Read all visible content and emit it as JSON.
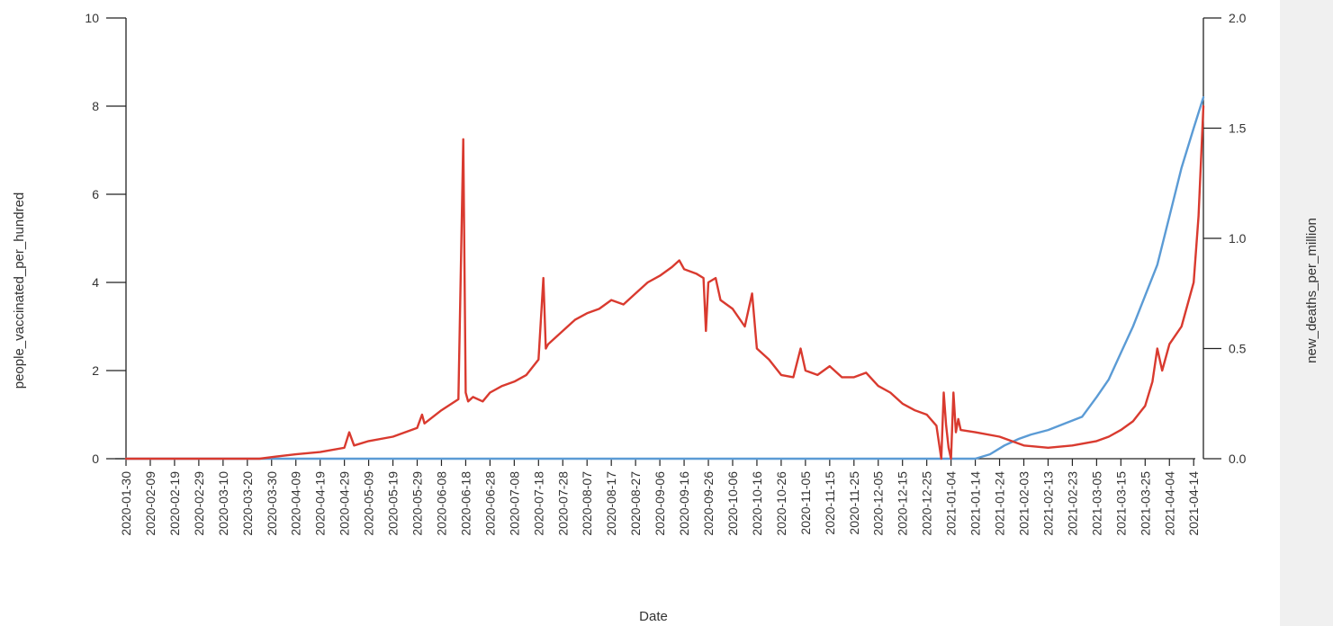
{
  "chart_data": {
    "type": "line",
    "xlabel": "Date",
    "ylabel_left": "people_vaccinated_per_hundred",
    "ylabel_right": "new_deaths_per_million",
    "ylim_left": [
      0,
      10
    ],
    "ylim_right": [
      0,
      2.0
    ],
    "yticks_left": [
      "0",
      "2",
      "4",
      "6",
      "8",
      "10"
    ],
    "yticks_right": [
      "0.0",
      "0.5",
      "1.0",
      "1.5",
      "2.0"
    ],
    "x_range": [
      "2020-01-30",
      "2021-04-18"
    ],
    "xticks": [
      "2020-01-30",
      "2020-02-09",
      "2020-02-19",
      "2020-02-29",
      "2020-03-10",
      "2020-03-20",
      "2020-03-30",
      "2020-04-09",
      "2020-04-19",
      "2020-04-29",
      "2020-05-09",
      "2020-05-19",
      "2020-05-29",
      "2020-06-08",
      "2020-06-18",
      "2020-06-28",
      "2020-07-08",
      "2020-07-18",
      "2020-07-28",
      "2020-08-07",
      "2020-08-17",
      "2020-08-27",
      "2020-09-06",
      "2020-09-16",
      "2020-09-26",
      "2020-10-06",
      "2020-10-16",
      "2020-10-26",
      "2020-11-05",
      "2020-11-15",
      "2020-11-25",
      "2020-12-05",
      "2020-12-15",
      "2020-12-25",
      "2021-01-04",
      "2021-01-14",
      "2021-01-24",
      "2021-02-03",
      "2021-02-13",
      "2021-02-23",
      "2021-03-05",
      "2021-03-15",
      "2021-03-25",
      "2021-04-04",
      "2021-04-14"
    ],
    "grid": false,
    "series": [
      {
        "name": "people_vaccinated_per_hundred",
        "axis": "left",
        "color": "#5b9bd5",
        "x": [
          "2020-01-30",
          "2021-01-14",
          "2021-01-20",
          "2021-01-26",
          "2021-02-01",
          "2021-02-06",
          "2021-02-13",
          "2021-02-20",
          "2021-02-27",
          "2021-03-05",
          "2021-03-10",
          "2021-03-15",
          "2021-03-20",
          "2021-03-25",
          "2021-03-30",
          "2021-04-04",
          "2021-04-09",
          "2021-04-14",
          "2021-04-18"
        ],
        "values": [
          0,
          0,
          0.1,
          0.3,
          0.45,
          0.55,
          0.65,
          0.8,
          0.95,
          1.4,
          1.8,
          2.4,
          3.0,
          3.7,
          4.4,
          5.5,
          6.6,
          7.5,
          8.2
        ]
      },
      {
        "name": "new_deaths_per_million",
        "axis": "right",
        "color": "#d93a2f",
        "x": [
          "2020-01-30",
          "2020-03-25",
          "2020-04-01",
          "2020-04-09",
          "2020-04-19",
          "2020-04-29",
          "2020-05-01",
          "2020-05-03",
          "2020-05-09",
          "2020-05-19",
          "2020-05-29",
          "2020-05-31",
          "2020-06-01",
          "2020-06-08",
          "2020-06-15",
          "2020-06-17",
          "2020-06-18",
          "2020-06-19",
          "2020-06-21",
          "2020-06-25",
          "2020-06-28",
          "2020-07-03",
          "2020-07-08",
          "2020-07-13",
          "2020-07-18",
          "2020-07-20",
          "2020-07-21",
          "2020-07-22",
          "2020-07-28",
          "2020-08-02",
          "2020-08-07",
          "2020-08-12",
          "2020-08-17",
          "2020-08-22",
          "2020-08-27",
          "2020-09-01",
          "2020-09-06",
          "2020-09-11",
          "2020-09-14",
          "2020-09-16",
          "2020-09-21",
          "2020-09-24",
          "2020-09-25",
          "2020-09-26",
          "2020-09-29",
          "2020-10-01",
          "2020-10-06",
          "2020-10-11",
          "2020-10-14",
          "2020-10-16",
          "2020-10-21",
          "2020-10-26",
          "2020-10-31",
          "2020-11-03",
          "2020-11-05",
          "2020-11-10",
          "2020-11-15",
          "2020-11-20",
          "2020-11-25",
          "2020-11-30",
          "2020-12-05",
          "2020-12-10",
          "2020-12-15",
          "2020-12-20",
          "2020-12-25",
          "2020-12-29",
          "2020-12-31",
          "2021-01-01",
          "2021-01-02",
          "2021-01-03",
          "2021-01-04",
          "2021-01-05",
          "2021-01-06",
          "2021-01-07",
          "2021-01-08",
          "2021-01-14",
          "2021-01-24",
          "2021-02-03",
          "2021-02-13",
          "2021-02-23",
          "2021-03-05",
          "2021-03-10",
          "2021-03-15",
          "2021-03-20",
          "2021-03-25",
          "2021-03-28",
          "2021-03-30",
          "2021-04-01",
          "2021-04-04",
          "2021-04-09",
          "2021-04-14",
          "2021-04-16",
          "2021-04-18"
        ],
        "values": [
          0,
          0,
          0.01,
          0.02,
          0.03,
          0.05,
          0.12,
          0.06,
          0.08,
          0.1,
          0.14,
          0.2,
          0.16,
          0.22,
          0.27,
          1.45,
          0.3,
          0.26,
          0.28,
          0.26,
          0.3,
          0.33,
          0.35,
          0.38,
          0.45,
          0.82,
          0.5,
          0.52,
          0.58,
          0.63,
          0.66,
          0.68,
          0.72,
          0.7,
          0.75,
          0.8,
          0.83,
          0.87,
          0.9,
          0.86,
          0.84,
          0.82,
          0.58,
          0.8,
          0.82,
          0.72,
          0.68,
          0.6,
          0.75,
          0.5,
          0.45,
          0.38,
          0.37,
          0.5,
          0.4,
          0.38,
          0.42,
          0.37,
          0.37,
          0.39,
          0.33,
          0.3,
          0.25,
          0.22,
          0.2,
          0.15,
          0.0,
          0.3,
          0.15,
          0.05,
          0.0,
          0.3,
          0.12,
          0.18,
          0.13,
          0.12,
          0.1,
          0.06,
          0.05,
          0.06,
          0.08,
          0.1,
          0.13,
          0.17,
          0.24,
          0.35,
          0.5,
          0.4,
          0.52,
          0.6,
          0.8,
          1.1,
          1.6
        ]
      }
    ]
  }
}
